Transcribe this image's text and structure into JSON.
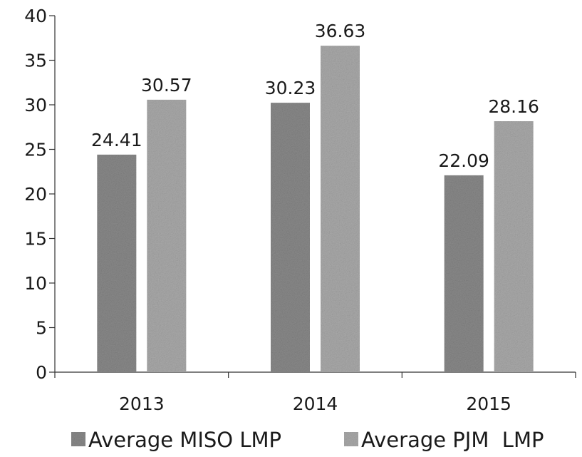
{
  "chart_data": {
    "type": "bar",
    "categories": [
      "2013",
      "2014",
      "2015"
    ],
    "series": [
      {
        "name": "Average MISO LMP",
        "values": [
          24.41,
          30.23,
          22.09
        ],
        "value_labels": [
          "24.41",
          "30.23",
          "22.09"
        ]
      },
      {
        "name": "Average PJM  LMP",
        "values": [
          30.57,
          36.63,
          28.16
        ],
        "value_labels": [
          "30.57",
          "36.63",
          "28.16"
        ]
      }
    ],
    "y_ticks": [
      "0",
      "5",
      "10",
      "15",
      "20",
      "25",
      "30",
      "35",
      "40"
    ],
    "ylim": [
      0,
      40
    ],
    "grid": false,
    "legend_position": "bottom",
    "title": "",
    "xlabel": "",
    "ylabel": ""
  },
  "colors": {
    "miso": "#8a8a8a",
    "pjm": "#a9a9a9",
    "axis": "#333333"
  }
}
